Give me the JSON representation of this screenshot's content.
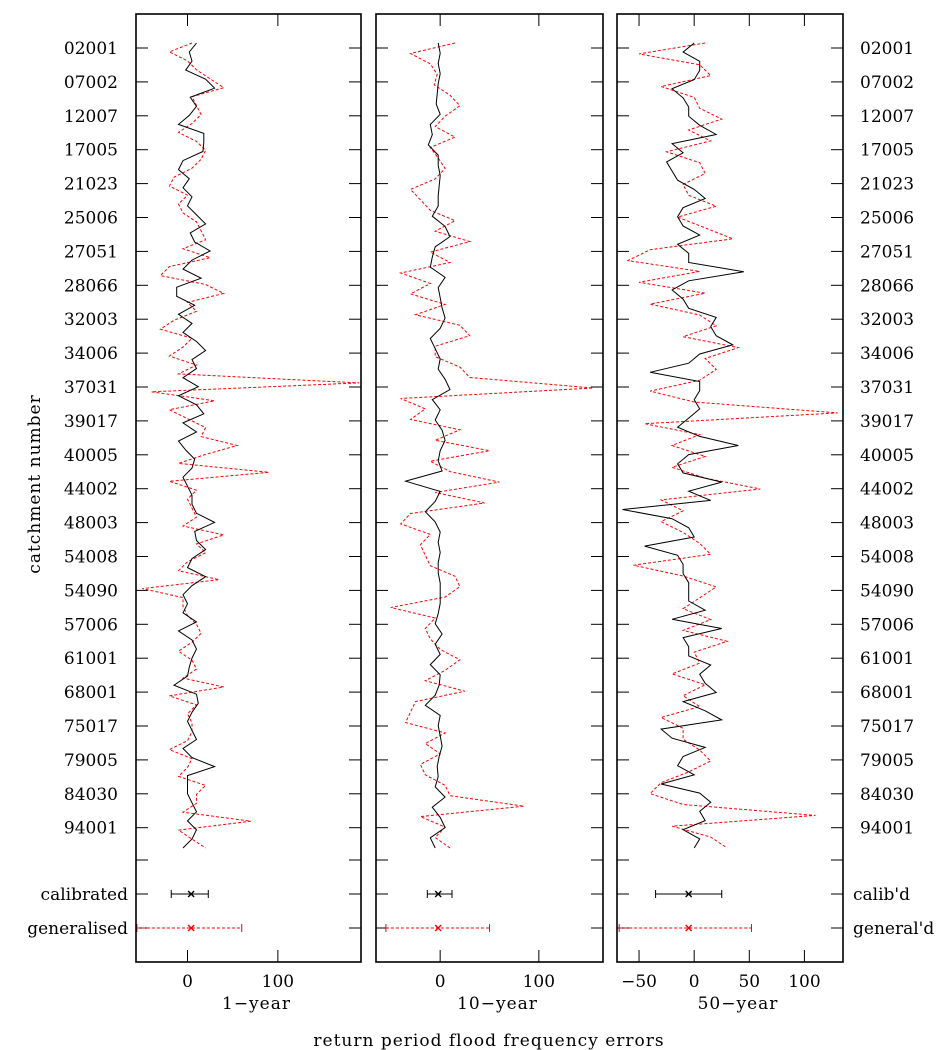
{
  "chart_data": {
    "type": "line",
    "xlabel": "return period flood frequency errors",
    "ylabel": "catchment number",
    "catchment_labels": [
      "02001",
      "07002",
      "12007",
      "17005",
      "21023",
      "25006",
      "27051",
      "28066",
      "32003",
      "34006",
      "37031",
      "39017",
      "40005",
      "44002",
      "48003",
      "54008",
      "54090",
      "57006",
      "61001",
      "68001",
      "75017",
      "79005",
      "84030",
      "94001"
    ],
    "summary_labels_left": [
      "calibrated",
      "generalised"
    ],
    "summary_labels_right": [
      "calib'd",
      "general'd"
    ],
    "colors": {
      "calibrated": "#000000",
      "generalised": "#ff0000"
    },
    "panels": [
      {
        "title": "1−year",
        "xlim": [
          -57,
          192
        ],
        "ticks": [
          0,
          100
        ],
        "tick_labels": [
          "0",
          "100"
        ],
        "calibrated": [
          10,
          2,
          5,
          -2,
          20,
          30,
          3,
          10,
          2,
          -10,
          18,
          18,
          17,
          -5,
          -10,
          2,
          -5,
          5,
          0,
          10,
          20,
          3,
          8,
          25,
          5,
          -5,
          15,
          -12,
          -12,
          8,
          -10,
          5,
          -5,
          10,
          20,
          5,
          10,
          -5,
          12,
          -10,
          10,
          18,
          -5,
          10,
          -10,
          -2,
          8,
          5,
          -5,
          0,
          5,
          5,
          10,
          30,
          8,
          10,
          20,
          5,
          0,
          20,
          5,
          -5,
          0,
          -5,
          10,
          -10,
          5,
          10,
          5,
          2,
          0,
          -15,
          10,
          12,
          5,
          0,
          5,
          10,
          -5,
          5,
          30,
          0,
          0,
          0,
          5,
          10,
          0,
          10,
          5,
          -5
        ],
        "calibrated_summary": {
          "mean": 4,
          "lower": -18,
          "upper": 23
        },
        "generalised": [
          5,
          -20,
          0,
          10,
          25,
          40,
          5,
          10,
          15,
          5,
          -10,
          10,
          20,
          15,
          5,
          -15,
          -20,
          0,
          -10,
          -5,
          10,
          15,
          20,
          -5,
          25,
          -20,
          -30,
          20,
          40,
          0,
          10,
          -15,
          -30,
          5,
          -5,
          -20,
          10,
          -10,
          190,
          -40,
          30,
          -20,
          0,
          20,
          15,
          55,
          20,
          -10,
          90,
          -20,
          10,
          0,
          5,
          10,
          -5,
          40,
          10,
          20,
          0,
          -10,
          35,
          -50,
          -5,
          -5,
          0,
          10,
          15,
          5,
          -10,
          5,
          10,
          -5,
          40,
          -20,
          10,
          0,
          5,
          5,
          0,
          -20,
          5,
          0,
          -10,
          20,
          10,
          10,
          -5,
          70,
          -10,
          5,
          20
        ],
        "generalised_summary": {
          "mean": 4,
          "lower": -56,
          "upper": 60
        }
      },
      {
        "title": "10−year",
        "xlim": [
          -65,
          165
        ],
        "ticks": [
          0,
          100
        ],
        "tick_labels": [
          "0",
          "100"
        ],
        "calibrated": [
          -2,
          0,
          -2,
          0,
          -2,
          -3,
          -4,
          0,
          -10,
          -8,
          -12,
          -2,
          -2,
          0,
          -1,
          -2,
          -2,
          -8,
          5,
          10,
          -5,
          -8,
          -10,
          5,
          -2,
          0,
          2,
          5,
          0,
          -10,
          -5,
          0,
          -2,
          5,
          10,
          -8,
          0,
          -5,
          2,
          5,
          0,
          -2,
          2,
          -35,
          0,
          -5,
          -15,
          -5,
          0,
          -2,
          0,
          -2,
          -2,
          0,
          0,
          0,
          -2,
          -5,
          2,
          -5,
          0,
          -10,
          0,
          -1,
          -5,
          -15,
          0,
          -2,
          0,
          2,
          -1,
          -3,
          -2,
          -5,
          5,
          -8,
          0,
          5,
          -10,
          -5
        ],
        "calibrated_summary": {
          "mean": -2,
          "lower": -13,
          "upper": 12
        },
        "generalised": [
          15,
          -30,
          -10,
          -3,
          -6,
          10,
          20,
          5,
          -5,
          15,
          -10,
          -2,
          5,
          -5,
          -30,
          -20,
          -10,
          15,
          -5,
          30,
          -10,
          10,
          -40,
          -10,
          -30,
          5,
          -25,
          20,
          30,
          -5,
          -5,
          20,
          30,
          155,
          -40,
          -15,
          -30,
          20,
          -5,
          50,
          -10,
          10,
          60,
          -5,
          45,
          -30,
          -40,
          -10,
          -20,
          -15,
          -10,
          15,
          20,
          5,
          -50,
          -5,
          -15,
          -10,
          0,
          20,
          5,
          -15,
          25,
          -25,
          -30,
          -35,
          5,
          -15,
          0,
          -20,
          -15,
          5,
          10,
          85,
          -20,
          5,
          -5,
          10
        ],
        "generalised_summary": {
          "mean": -2,
          "lower": -55,
          "upper": 50
        }
      },
      {
        "title": "50−year",
        "xlim": [
          -70,
          135
        ],
        "ticks": [
          -50,
          0,
          50,
          100
        ],
        "tick_labels": [
          "−50",
          "0",
          "50",
          "100"
        ],
        "calibrated": [
          0,
          -10,
          5,
          5,
          0,
          -20,
          -10,
          -5,
          -5,
          5,
          20,
          -20,
          -10,
          -25,
          -20,
          -15,
          0,
          10,
          -10,
          -15,
          -10,
          5,
          -15,
          -5,
          -5,
          45,
          -5,
          -20,
          -10,
          -5,
          20,
          15,
          20,
          35,
          5,
          -5,
          -40,
          5,
          5,
          0,
          5,
          -5,
          -15,
          5,
          40,
          -5,
          -15,
          -10,
          25,
          -5,
          15,
          -65,
          -20,
          -5,
          0,
          -45,
          -15,
          -10,
          -10,
          -5,
          -5,
          -5,
          10,
          -20,
          25,
          -10,
          -5,
          -5,
          15,
          5,
          10,
          20,
          -10,
          10,
          25,
          -30,
          -20,
          10,
          -10,
          -15,
          0,
          -30,
          5,
          15,
          5,
          10,
          -10,
          5,
          0
        ],
        "calibrated_summary": {
          "mean": -5,
          "lower": -35,
          "upper": 25
        },
        "generalised": [
          10,
          -50,
          5,
          15,
          -30,
          0,
          5,
          25,
          -5,
          15,
          -25,
          5,
          10,
          -10,
          -5,
          20,
          -15,
          10,
          35,
          -40,
          -60,
          5,
          -50,
          10,
          -40,
          5,
          20,
          -10,
          40,
          10,
          20,
          5,
          -40,
          0,
          130,
          -45,
          5,
          -20,
          10,
          -20,
          10,
          60,
          -30,
          -10,
          -30,
          -10,
          5,
          15,
          -55,
          -10,
          20,
          5,
          -10,
          15,
          -10,
          30,
          0,
          5,
          -20,
          10,
          -10,
          5,
          -30,
          -10,
          -10,
          5,
          15,
          -5,
          -30,
          -40,
          -10,
          110,
          -20,
          15,
          30
        ],
        "generalised_summary": {
          "mean": -5,
          "lower": -68,
          "upper": 52
        }
      }
    ]
  }
}
